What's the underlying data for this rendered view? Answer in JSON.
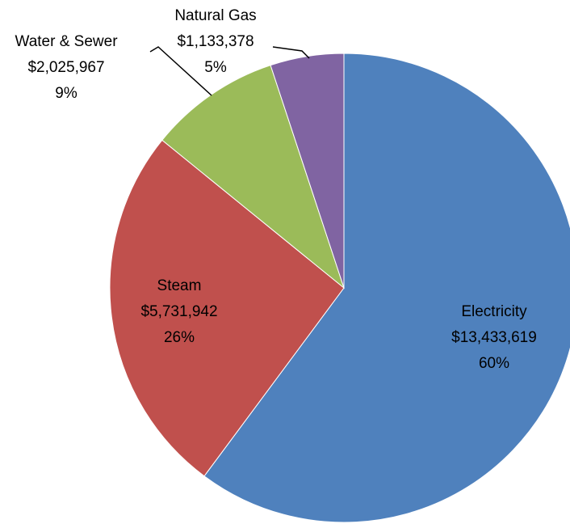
{
  "chart_data": {
    "type": "pie",
    "categories": [
      "Electricity",
      "Steam",
      "Water & Sewer",
      "Natural Gas"
    ],
    "values": [
      13433619,
      5731942,
      2025967,
      1133378
    ],
    "value_labels": [
      "$13,433,619",
      "$5,731,942",
      "$2,025,967",
      "$1,133,378"
    ],
    "percents": [
      60,
      26,
      9,
      5
    ],
    "percent_labels": [
      "60%",
      "26%",
      "9%",
      "5%"
    ],
    "colors": [
      "#4f81bd",
      "#c0504d",
      "#9bbb59",
      "#8064a2"
    ]
  }
}
